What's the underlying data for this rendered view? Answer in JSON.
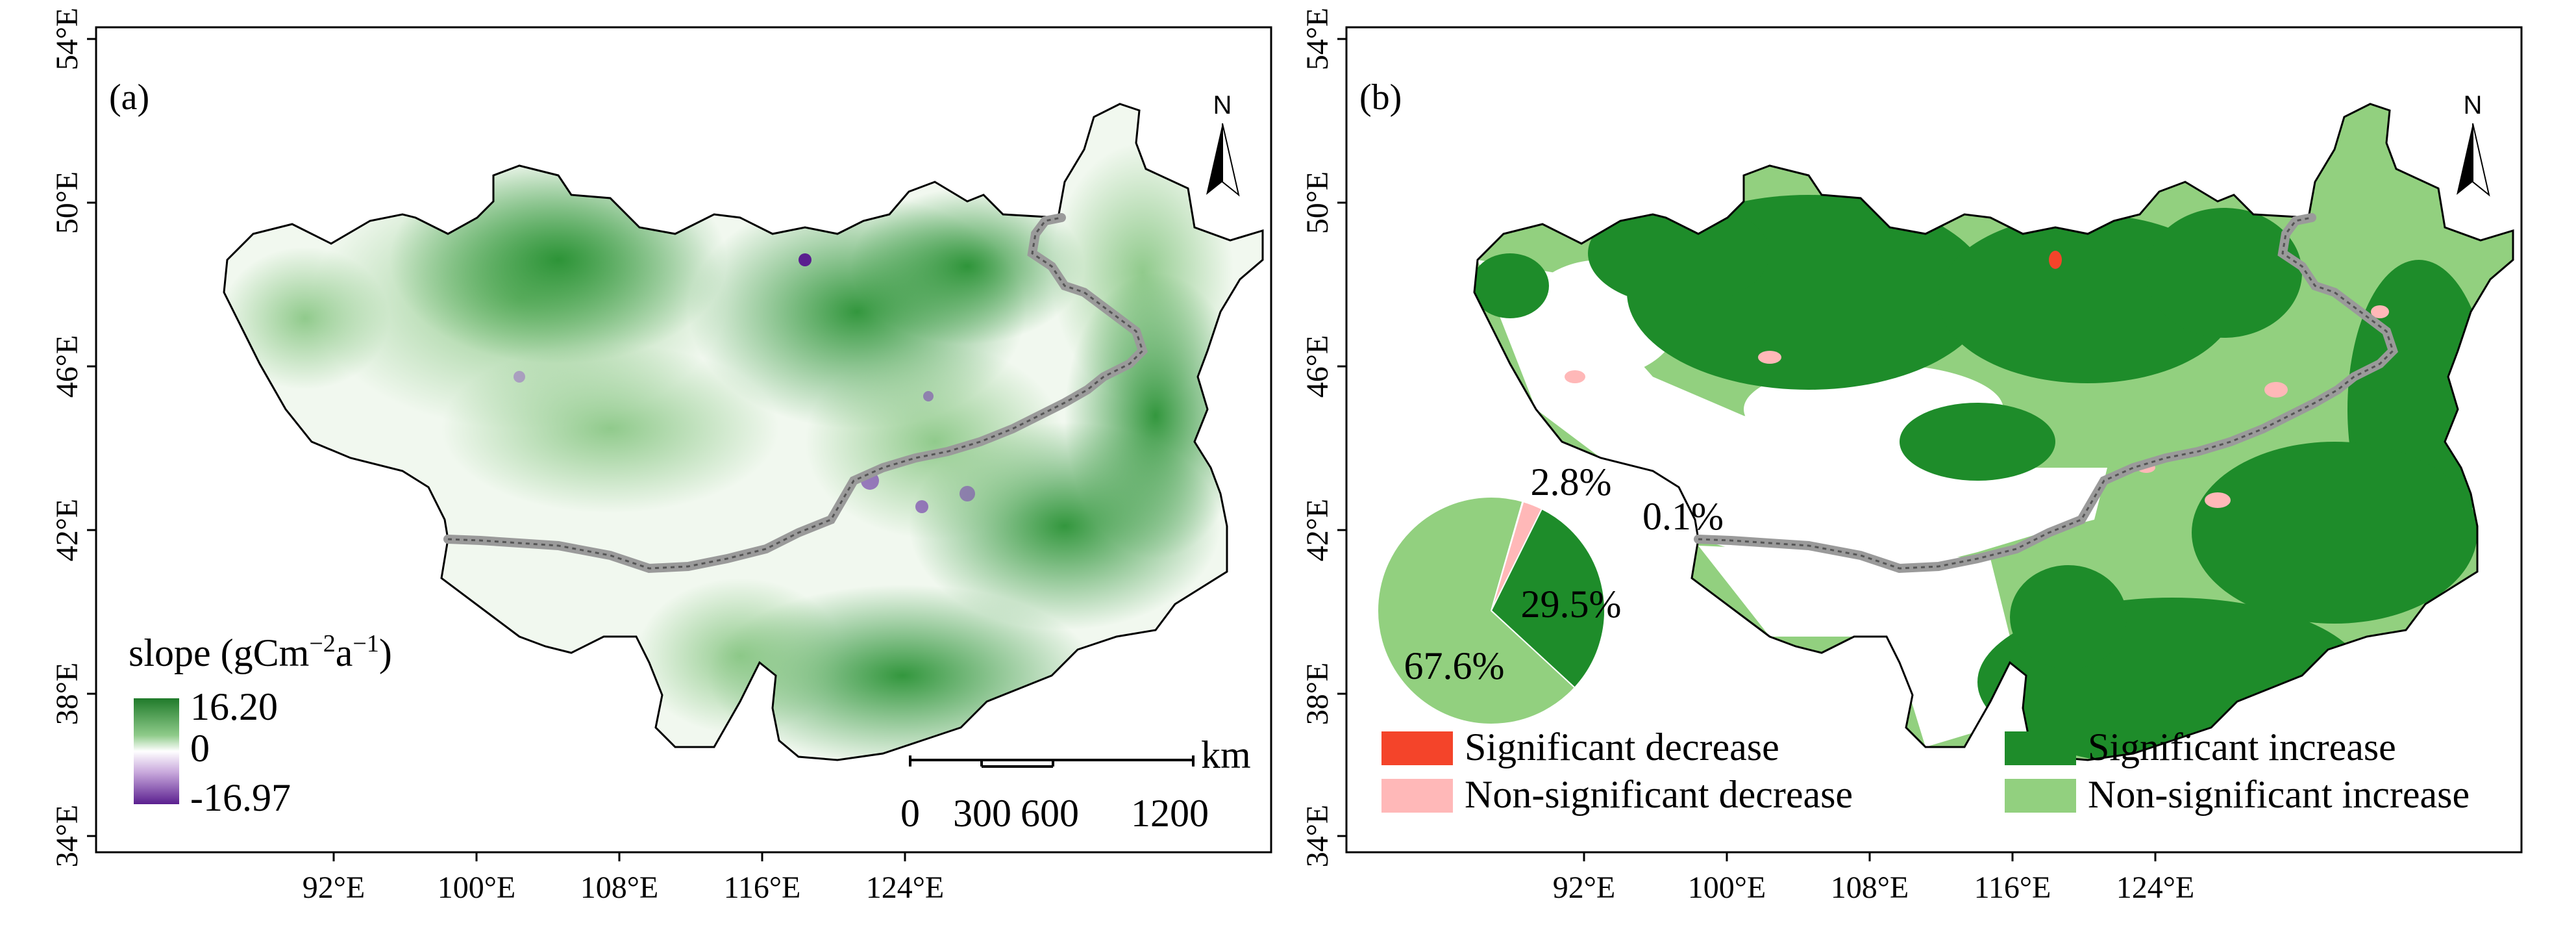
{
  "panel_a": {
    "label": "(a)",
    "x_ticks": [
      "92°E",
      "100°E",
      "108°E",
      "116°E",
      "124°E"
    ],
    "y_ticks": [
      "54°E",
      "50°E",
      "46°E",
      "42°E",
      "38°E",
      "34°E"
    ],
    "north": "N",
    "legend": {
      "title_main": "slope (gCm",
      "title_sup1": "−2",
      "title_mid": "a",
      "title_sup2": "−1",
      "title_end": ")",
      "max": "16.20",
      "mid": "0",
      "min": "-16.97"
    },
    "scale_bar": {
      "unit": "km",
      "labels": [
        "0",
        "300",
        "600",
        "1200"
      ]
    }
  },
  "panel_b": {
    "label": "(b)",
    "x_ticks": [
      "92°E",
      "100°E",
      "108°E",
      "116°E",
      "124°E"
    ],
    "y_ticks": [
      "54°E",
      "50°E",
      "46°E",
      "42°E",
      "38°E",
      "34°E"
    ],
    "north": "N",
    "pie": {
      "slices": [
        {
          "name": "Significant decrease",
          "value": 0.1,
          "label": "0.1%",
          "color": "#f4442a"
        },
        {
          "name": "Non-significant decrease",
          "value": 2.8,
          "label": "2.8%",
          "color": "#ffb8b8"
        },
        {
          "name": "Significant increase",
          "value": 29.5,
          "label": "29.5%",
          "color": "#1e8c2a"
        },
        {
          "name": "Non-significant increase",
          "value": 67.6,
          "label": "67.6%",
          "color": "#92d07f"
        }
      ]
    },
    "legend": [
      {
        "label": "Significant decrease",
        "color": "#f4442a"
      },
      {
        "label": "Significant increase",
        "color": "#1e8c2a"
      },
      {
        "label": "Non-significant decrease",
        "color": "#ffb8b8"
      },
      {
        "label": "Non-significant increase",
        "color": "#92d07f"
      }
    ]
  },
  "colors": {
    "dark_green": "#1e8c2a",
    "light_green": "#92d07f",
    "purple": "#6a2d9e"
  }
}
